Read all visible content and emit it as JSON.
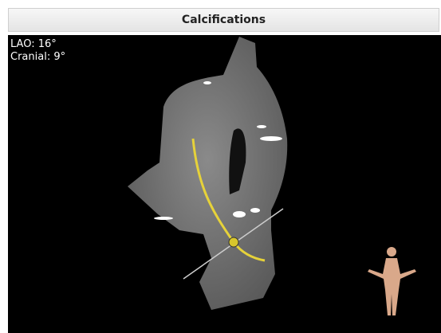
{
  "header": {
    "title": "Calcifications"
  },
  "viewport": {
    "labels": [
      "LAO: 16°",
      "Cranial: 9°"
    ]
  }
}
